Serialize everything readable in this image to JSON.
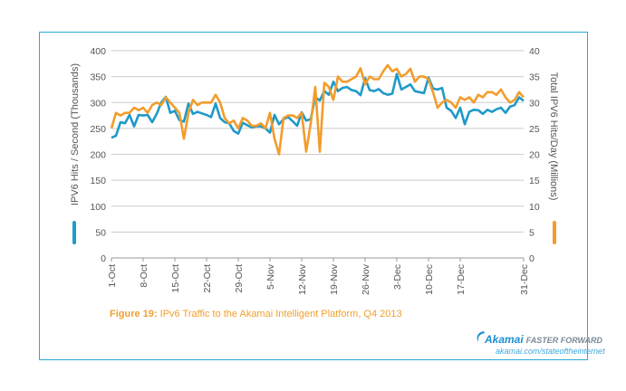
{
  "caption": {
    "prefix": "Figure 19:",
    "text": " IPv6 Traffic to the Akamai Intelligent Platform, Q4 2013"
  },
  "brand": {
    "name": "Akamai",
    "tagline": "FASTER FORWARD",
    "url": "akamai.com/stateoftheinternet"
  },
  "colors": {
    "frame": "#29a9d6",
    "left_series": "#1f9ac9",
    "right_series": "#f39c2b",
    "grid": "#cccccc",
    "text": "#555555"
  },
  "chart_data": {
    "type": "line",
    "x_tick_labels": [
      "1-Oct",
      "8-Oct",
      "15-Oct",
      "22-Oct",
      "29-Oct",
      "5-Nov",
      "12-Nov",
      "19-Nov",
      "26-Nov",
      "3-Dec",
      "10-Dec",
      "17-Dec",
      "31-Dec"
    ],
    "x_tick_days": [
      0,
      7,
      14,
      21,
      28,
      35,
      42,
      49,
      56,
      63,
      70,
      77,
      91
    ],
    "ylabel_left": "IPV6 Hits / Second (Thousands)",
    "ylabel_right": "Total IPV6 Hits/Day (Millions)",
    "ylim_left": [
      0,
      400
    ],
    "ylim_right": [
      0,
      40
    ],
    "y_ticks_left": [
      0,
      50,
      100,
      150,
      200,
      250,
      300,
      350,
      400
    ],
    "y_ticks_right": [
      0,
      5,
      10,
      15,
      20,
      25,
      30,
      35,
      40
    ],
    "grid": true,
    "series": [
      {
        "axis": "left",
        "values": [
          232,
          236,
          262,
          260,
          276,
          254,
          276,
          275,
          276,
          262,
          278,
          300,
          311,
          280,
          284,
          266,
          263,
          298,
          278,
          282,
          279,
          276,
          272,
          298,
          270,
          262,
          260,
          245,
          240,
          261,
          256,
          252,
          254,
          254,
          250,
          242,
          276,
          258,
          268,
          272,
          264,
          255,
          281,
          265,
          268,
          310,
          304,
          322,
          315,
          340,
          322,
          328,
          330,
          324,
          322,
          314,
          347,
          324,
          322,
          326,
          318,
          315,
          317,
          355,
          325,
          330,
          335,
          322,
          320,
          318,
          348,
          327,
          325,
          328,
          290,
          284,
          270,
          290,
          258,
          282,
          286,
          285,
          278,
          286,
          282,
          287,
          290,
          280,
          292,
          295,
          310,
          303
        ]
      },
      {
        "axis": "right",
        "values": [
          25,
          28,
          27.5,
          28,
          28,
          29,
          28.5,
          29,
          28,
          29.5,
          30,
          29.5,
          31,
          30,
          29,
          28,
          23,
          28,
          30.5,
          29.5,
          30,
          30,
          30,
          31.5,
          30,
          27,
          26,
          26.5,
          25,
          27,
          26.5,
          25.5,
          25.5,
          26,
          25,
          28,
          23,
          20,
          27,
          27.5,
          27.5,
          27,
          28,
          20.5,
          26,
          33,
          20.5,
          33.8,
          33,
          30.5,
          35,
          34,
          34,
          34.5,
          35,
          36.6,
          33.5,
          35,
          34.5,
          34.5,
          36,
          37.2,
          36,
          36.5,
          35,
          35.5,
          36.5,
          34,
          35,
          35,
          34.5,
          32,
          29,
          30,
          30.5,
          30,
          29,
          31,
          30.5,
          31,
          30,
          31.5,
          31,
          32,
          32,
          31.5,
          32.5,
          31,
          30,
          30.5,
          32,
          31
        ]
      }
    ]
  }
}
